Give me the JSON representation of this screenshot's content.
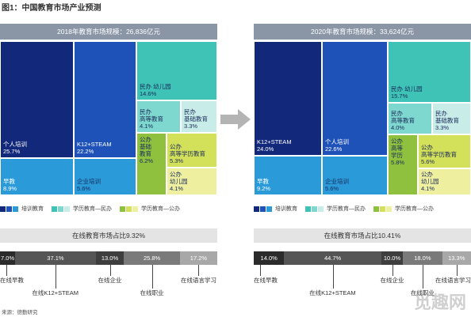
{
  "title": "图1：中国教育市场产业预测",
  "source": "来源：德勤研究",
  "watermark": "觅趣网",
  "colors": {
    "training_dark": "#12287a",
    "training_mid": "#1f52b8",
    "training_light": "#2a9ad8",
    "academic_teal": "#3ec3b6",
    "academic_lightteal": "#7fd8cf",
    "academic_pale": "#c8ece8",
    "public_green": "#8fc13e",
    "public_lime": "#d3e05a",
    "public_pale": "#eef0a0",
    "header_gray": "#8a96a6"
  },
  "legend": {
    "items": [
      {
        "label": "培训教育",
        "colors": [
          "#12287a",
          "#1f52b8",
          "#2a9ad8"
        ]
      },
      {
        "label": "学历教育—民办",
        "colors": [
          "#3ec3b6",
          "#7fd8cf",
          "#c8ece8"
        ]
      },
      {
        "label": "学历教育—公办",
        "colors": [
          "#8fc13e",
          "#d3e05a",
          "#eef0a0"
        ]
      }
    ]
  },
  "chart_data": [
    {
      "type": "treemap",
      "title": "2018年教育市场规模：26,836亿元",
      "cells": [
        {
          "name": "个人培训",
          "value": 25.7,
          "label": "25.7%",
          "group": "培训教育"
        },
        {
          "name": "早教",
          "value": 8.9,
          "label": "8.9%",
          "group": "培训教育"
        },
        {
          "name": "K12+STEAM",
          "value": 22.2,
          "label": "22.2%",
          "group": "培训教育"
        },
        {
          "name": "企业培训",
          "value": 5.6,
          "label": "5.6%",
          "group": "培训教育"
        },
        {
          "name": "民办幼儿园",
          "value": 14.6,
          "label": "14.6%",
          "group": "学历教育—民办"
        },
        {
          "name": "民办高等教育",
          "value": 4.1,
          "label": "4.1%",
          "group": "学历教育—民办"
        },
        {
          "name": "民办基础教育",
          "value": 3.3,
          "label": "3.3%",
          "group": "学历教育—民办"
        },
        {
          "name": "公办基础教育",
          "value": 6.2,
          "label": "6.2%",
          "group": "学历教育—公办"
        },
        {
          "name": "公办高等学历教育",
          "value": 5.3,
          "label": "5.3%",
          "group": "学历教育—公办"
        },
        {
          "name": "公办幼儿园",
          "value": 4.1,
          "label": "4.1%",
          "group": "学历教育—公办"
        }
      ]
    },
    {
      "type": "treemap",
      "title": "2020年教育市场规模：33,624亿元",
      "cells": [
        {
          "name": "K12+STEAM",
          "value": 24.0,
          "label": "24.0%",
          "group": "培训教育"
        },
        {
          "name": "早教",
          "value": 9.2,
          "label": "9.2%",
          "group": "培训教育"
        },
        {
          "name": "个人培训",
          "value": 22.6,
          "label": "22.6%",
          "group": "培训教育"
        },
        {
          "name": "企业培训",
          "value": 5.6,
          "label": "5.6%",
          "group": "培训教育"
        },
        {
          "name": "民办幼儿园",
          "value": 15.7,
          "label": "15.7%",
          "group": "学历教育—民办"
        },
        {
          "name": "民办高等教育",
          "value": 4.0,
          "label": "4.0%",
          "group": "学历教育—民办"
        },
        {
          "name": "民办基础教育",
          "value": 3.3,
          "label": "3.3%",
          "group": "学历教育—民办"
        },
        {
          "name": "公办高等学历",
          "value": 5.8,
          "label": "5.8%",
          "group": "学历教育—公办"
        },
        {
          "name": "公办高等学历教育",
          "value": 5.6,
          "label": "5.6%",
          "group": "学历教育—公办"
        },
        {
          "name": "公办幼儿园",
          "value": 4.1,
          "label": "4.1%",
          "group": "学历教育—公办"
        }
      ]
    },
    {
      "type": "stacked-bar",
      "title": "在线教育市场占比9.32%",
      "segments": [
        {
          "name": "在线早教",
          "value": 7.0,
          "label": "7.0%"
        },
        {
          "name": "在线K12+STEAM",
          "value": 37.1,
          "label": "37.1%"
        },
        {
          "name": "在线企业",
          "value": 13.0,
          "label": "13.0%"
        },
        {
          "name": "在线职业",
          "value": 25.8,
          "label": "25.8%"
        },
        {
          "name": "在线语言学习",
          "value": 17.2,
          "label": "17.2%"
        }
      ]
    },
    {
      "type": "stacked-bar",
      "title": "在线教育市场占比10.41%",
      "segments": [
        {
          "name": "在线早教",
          "value": 14.0,
          "label": "14.0%"
        },
        {
          "name": "在线K12+STEAM",
          "value": 44.7,
          "label": "44.7%"
        },
        {
          "name": "在线企业",
          "value": 10.0,
          "label": "10.0%"
        },
        {
          "name": "在线职业",
          "value": 18.0,
          "label": "18.0%"
        },
        {
          "name": "在线语言学习",
          "value": 13.3,
          "label": "13.3%"
        }
      ]
    }
  ]
}
